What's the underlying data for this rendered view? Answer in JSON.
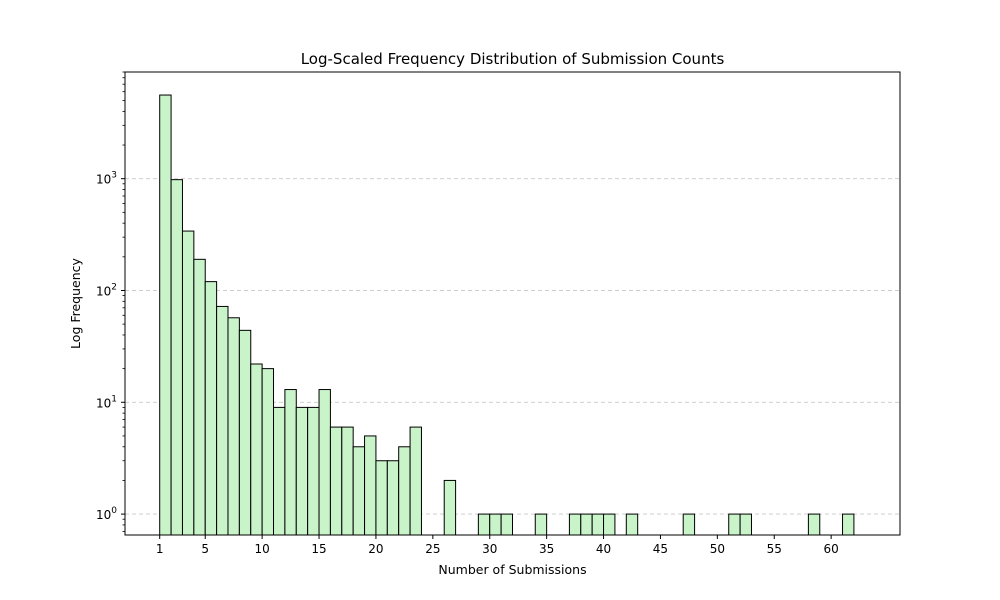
{
  "chart_data": {
    "type": "bar",
    "title": "Log-Scaled Frequency Distribution of Submission Counts",
    "xlabel": "Number of Submissions",
    "ylabel": "Log Frequency",
    "y_scale": "log",
    "xlim": [
      -2.05,
      66.05
    ],
    "ylim": [
      0.65,
      9000
    ],
    "x_ticks": [
      1,
      5,
      10,
      15,
      20,
      25,
      30,
      35,
      40,
      45,
      50,
      55,
      60
    ],
    "y_ticks": [
      {
        "value": 1,
        "base": "10",
        "exp": "0"
      },
      {
        "value": 10,
        "base": "10",
        "exp": "1"
      },
      {
        "value": 100,
        "base": "10",
        "exp": "2"
      },
      {
        "value": 1000,
        "base": "10",
        "exp": "3"
      }
    ],
    "grid": {
      "axis": "y",
      "style": "dashed"
    },
    "colors": {
      "bar_fill": "#c9f3c9",
      "bar_edge": "#000000",
      "grid": "#c8c8c8"
    },
    "bins": [
      {
        "x0": 1,
        "x1": 2,
        "count": 5600
      },
      {
        "x0": 2,
        "x1": 3,
        "count": 980
      },
      {
        "x0": 3,
        "x1": 4,
        "count": 340
      },
      {
        "x0": 4,
        "x1": 5,
        "count": 190
      },
      {
        "x0": 5,
        "x1": 6,
        "count": 120
      },
      {
        "x0": 6,
        "x1": 7,
        "count": 72
      },
      {
        "x0": 7,
        "x1": 8,
        "count": 57
      },
      {
        "x0": 8,
        "x1": 9,
        "count": 44
      },
      {
        "x0": 9,
        "x1": 10,
        "count": 22
      },
      {
        "x0": 10,
        "x1": 11,
        "count": 20
      },
      {
        "x0": 11,
        "x1": 12,
        "count": 9
      },
      {
        "x0": 12,
        "x1": 13,
        "count": 13
      },
      {
        "x0": 13,
        "x1": 14,
        "count": 9
      },
      {
        "x0": 14,
        "x1": 15,
        "count": 9
      },
      {
        "x0": 15,
        "x1": 16,
        "count": 13
      },
      {
        "x0": 16,
        "x1": 17,
        "count": 6
      },
      {
        "x0": 17,
        "x1": 18,
        "count": 6
      },
      {
        "x0": 18,
        "x1": 19,
        "count": 4
      },
      {
        "x0": 19,
        "x1": 20,
        "count": 5
      },
      {
        "x0": 20,
        "x1": 21,
        "count": 3
      },
      {
        "x0": 21,
        "x1": 22,
        "count": 3
      },
      {
        "x0": 22,
        "x1": 23,
        "count": 4
      },
      {
        "x0": 23,
        "x1": 24,
        "count": 6
      },
      {
        "x0": 26,
        "x1": 27,
        "count": 2
      },
      {
        "x0": 29,
        "x1": 30,
        "count": 1
      },
      {
        "x0": 30,
        "x1": 31,
        "count": 1
      },
      {
        "x0": 31,
        "x1": 32,
        "count": 1
      },
      {
        "x0": 34,
        "x1": 35,
        "count": 1
      },
      {
        "x0": 37,
        "x1": 38,
        "count": 1
      },
      {
        "x0": 38,
        "x1": 39,
        "count": 1
      },
      {
        "x0": 39,
        "x1": 40,
        "count": 1
      },
      {
        "x0": 40,
        "x1": 41,
        "count": 1
      },
      {
        "x0": 42,
        "x1": 43,
        "count": 1
      },
      {
        "x0": 47,
        "x1": 48,
        "count": 1
      },
      {
        "x0": 51,
        "x1": 52,
        "count": 1
      },
      {
        "x0": 52,
        "x1": 53,
        "count": 1
      },
      {
        "x0": 58,
        "x1": 59,
        "count": 1
      },
      {
        "x0": 61,
        "x1": 62,
        "count": 1
      }
    ]
  }
}
